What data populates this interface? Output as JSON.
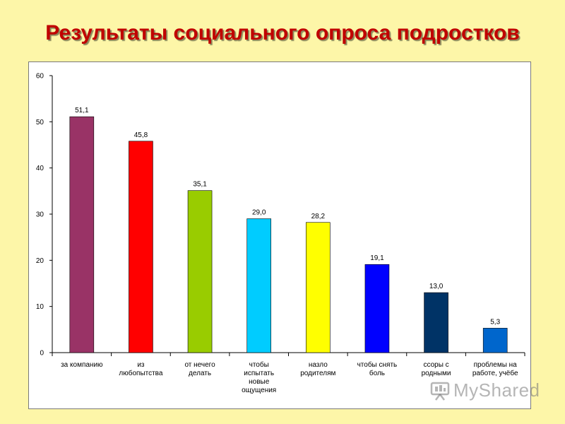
{
  "title": "Результаты социального опроса подростков",
  "watermark": "MyShared",
  "colors": {
    "background": "#fdf6a8",
    "title": "#c00000"
  },
  "chart_data": {
    "type": "bar",
    "title": "",
    "xlabel": "",
    "ylabel": "",
    "ylim": [
      0,
      60
    ],
    "yticks": [
      0,
      10,
      20,
      30,
      40,
      50,
      60
    ],
    "grid": false,
    "legend": "none",
    "categories": [
      [
        "за компанию"
      ],
      [
        "из",
        "любопытства"
      ],
      [
        "от нечего",
        "делать"
      ],
      [
        "чтобы",
        "испытать",
        "новые",
        "ощущения"
      ],
      [
        "назло",
        "родителям"
      ],
      [
        "чтобы снять",
        "боль"
      ],
      [
        "ссоры с",
        "родными"
      ],
      [
        "проблемы на",
        "работе, учёбе"
      ]
    ],
    "values": [
      51.1,
      45.8,
      35.1,
      29.0,
      28.2,
      19.1,
      13.0,
      5.3
    ],
    "value_labels": [
      "51,1",
      "45,8",
      "35,1",
      "29,0",
      "28,2",
      "19,1",
      "13,0",
      "5,3"
    ],
    "bar_colors": [
      "#993366",
      "#ff0000",
      "#99cc00",
      "#00ccff",
      "#ffff00",
      "#0000ff",
      "#003366",
      "#0066cc"
    ]
  }
}
